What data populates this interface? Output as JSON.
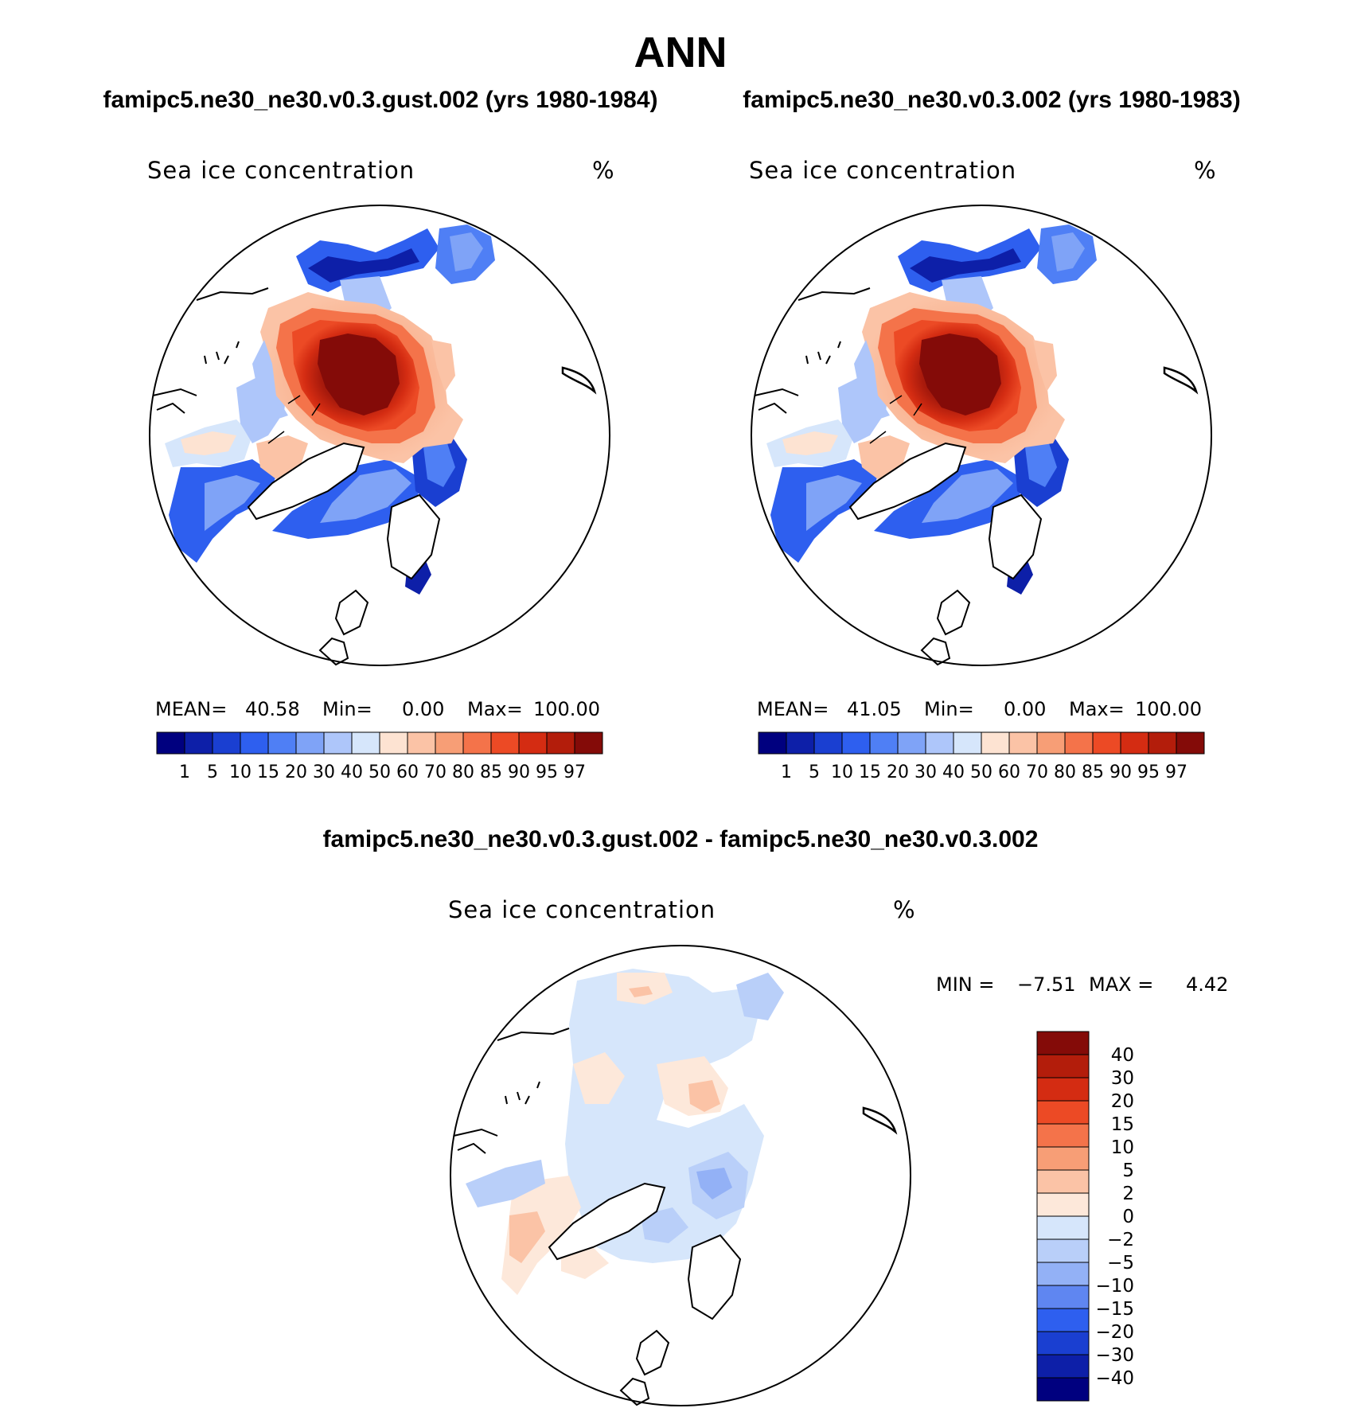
{
  "chart_data": {
    "type": "polar-map",
    "title": "ANN",
    "variable": "Sea ice concentration",
    "units": "%",
    "panels": [
      {
        "id": "test",
        "case_title": "famipc5.ne30_ne30.v0.3.gust.002 (yrs 1980-1984)",
        "label": "Sea ice concentration",
        "units": "%",
        "mean_label": "MEAN=",
        "mean": "40.58",
        "min_label": "Min=",
        "min": "0.00",
        "max_label": "Max=",
        "max": "100.00"
      },
      {
        "id": "control",
        "case_title": "famipc5.ne30_ne30.v0.3.002 (yrs 1980-1983)",
        "label": "Sea ice concentration",
        "units": "%",
        "mean_label": "MEAN=",
        "mean": "41.05",
        "min_label": "Min=",
        "min": "0.00",
        "max_label": "Max=",
        "max": "100.00"
      },
      {
        "id": "diff",
        "case_title": "famipc5.ne30_ne30.v0.3.gust.002 - famipc5.ne30_ne30.v0.3.002",
        "label": "Sea ice concentration",
        "units": "%",
        "min_label": "MIN =",
        "min": "−7.51",
        "max_label": "MAX =",
        "max": "4.42"
      }
    ],
    "colorbar_levels": [
      "1",
      "5",
      "10",
      "15",
      "20",
      "30",
      "40",
      "50",
      "60",
      "70",
      "80",
      "85",
      "90",
      "95",
      "97"
    ],
    "colorbar_colors": [
      "#00007f",
      "#0d1fa8",
      "#1a3fd1",
      "#2e5fef",
      "#4f7ff5",
      "#7fa3f7",
      "#aec6fa",
      "#d6e6fb",
      "#fde3d2",
      "#fbc3a6",
      "#f79e76",
      "#f4734a",
      "#ec4a25",
      "#d42c12",
      "#b31d0b",
      "#840b08"
    ],
    "diff_levels": [
      "40",
      "30",
      "20",
      "15",
      "10",
      "5",
      "2",
      "0",
      "−2",
      "−5",
      "−10",
      "−15",
      "−20",
      "−30",
      "−40"
    ],
    "diff_colors": [
      "#840b08",
      "#b31d0b",
      "#d42c12",
      "#ec4a25",
      "#f4734a",
      "#f79e76",
      "#fbc3a6",
      "#fde8da",
      "#d6e6fb",
      "#b9cff9",
      "#93b1f6",
      "#5f86f1",
      "#2e5fef",
      "#1a3fd1",
      "#0d1fa8",
      "#00007f"
    ]
  }
}
